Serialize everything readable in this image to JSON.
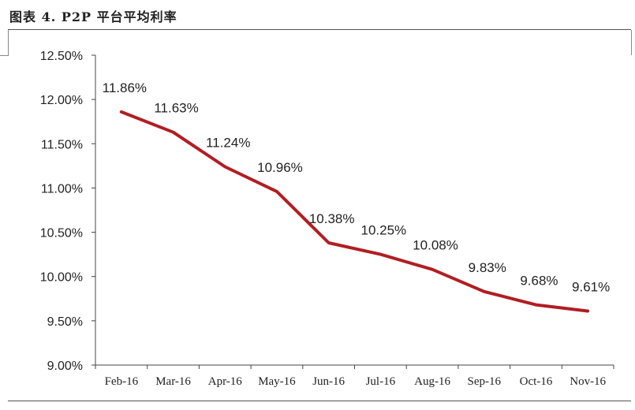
{
  "figure": {
    "title": "图表 4. P2P 平台平均利率"
  },
  "chart_data": {
    "type": "line",
    "title": "",
    "xlabel": "",
    "ylabel": "",
    "categories": [
      "Feb-16",
      "Mar-16",
      "Apr-16",
      "May-16",
      "Jun-16",
      "Jul-16",
      "Aug-16",
      "Sep-16",
      "Oct-16",
      "Nov-16"
    ],
    "series": [
      {
        "color": "#b01e23",
        "values": [
          11.86,
          11.63,
          11.24,
          10.96,
          10.38,
          10.25,
          10.08,
          9.83,
          9.68,
          9.61
        ],
        "labels": [
          "11.86%",
          "11.63%",
          "11.24%",
          "10.96%",
          "10.38%",
          "10.25%",
          "10.08%",
          "9.83%",
          "9.68%",
          "9.61%"
        ]
      }
    ],
    "ylim": [
      9.0,
      12.5
    ],
    "yticks": [
      9.0,
      9.5,
      10.0,
      10.5,
      11.0,
      11.5,
      12.0,
      12.5
    ],
    "ytick_labels": [
      "9.00%",
      "9.50%",
      "10.00%",
      "10.50%",
      "11.00%",
      "11.50%",
      "12.00%",
      "12.50%"
    ],
    "grid": false,
    "legend": "none"
  }
}
